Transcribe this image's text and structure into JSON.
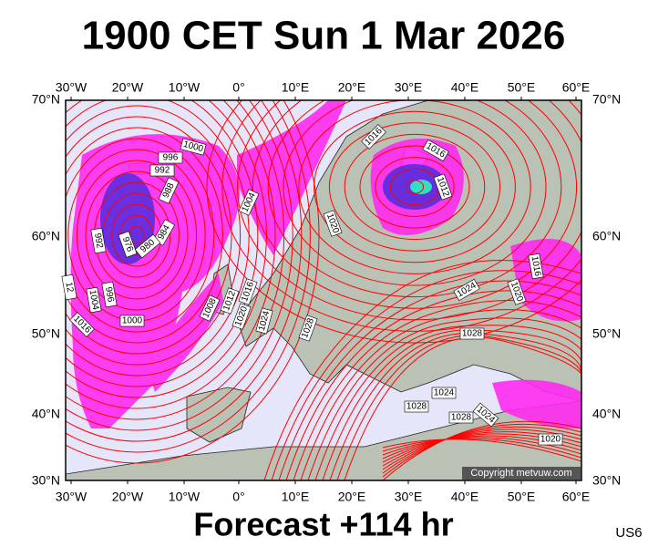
{
  "header": {
    "title": "1900 CET Sun 1 Mar 2026"
  },
  "axes": {
    "top": [
      "30°W",
      "20°W",
      "10°W",
      "0°",
      "10°E",
      "20°E",
      "30°E",
      "40°E",
      "50°E",
      "60°E"
    ],
    "bottom": [
      "30°W",
      "20°W",
      "10°W",
      "0°",
      "10°E",
      "20°E",
      "30°E",
      "40°E",
      "50°E",
      "60°E"
    ],
    "left": [
      "70°N",
      "60°N",
      "50°N",
      "40°N",
      "30°N"
    ],
    "right": [
      "70°N",
      "60°N",
      "50°N",
      "40°N",
      "30°N"
    ]
  },
  "isobars": [
    "1000",
    "996",
    "992",
    "988",
    "984",
    "980",
    "976",
    "992",
    "996",
    "1004",
    "1000",
    "1016",
    "12",
    "1004",
    "1008",
    "1012",
    "1016",
    "1020",
    "1024",
    "1028",
    "1016",
    "1016",
    "1012",
    "1020",
    "1024",
    "1028",
    "1016",
    "1020",
    "1028",
    "1024",
    "1028",
    "1024",
    "1020"
  ],
  "copyright": "Copyright metvuw.com",
  "footer": {
    "forecast": "Forecast +114 hr",
    "code": "US6"
  }
}
